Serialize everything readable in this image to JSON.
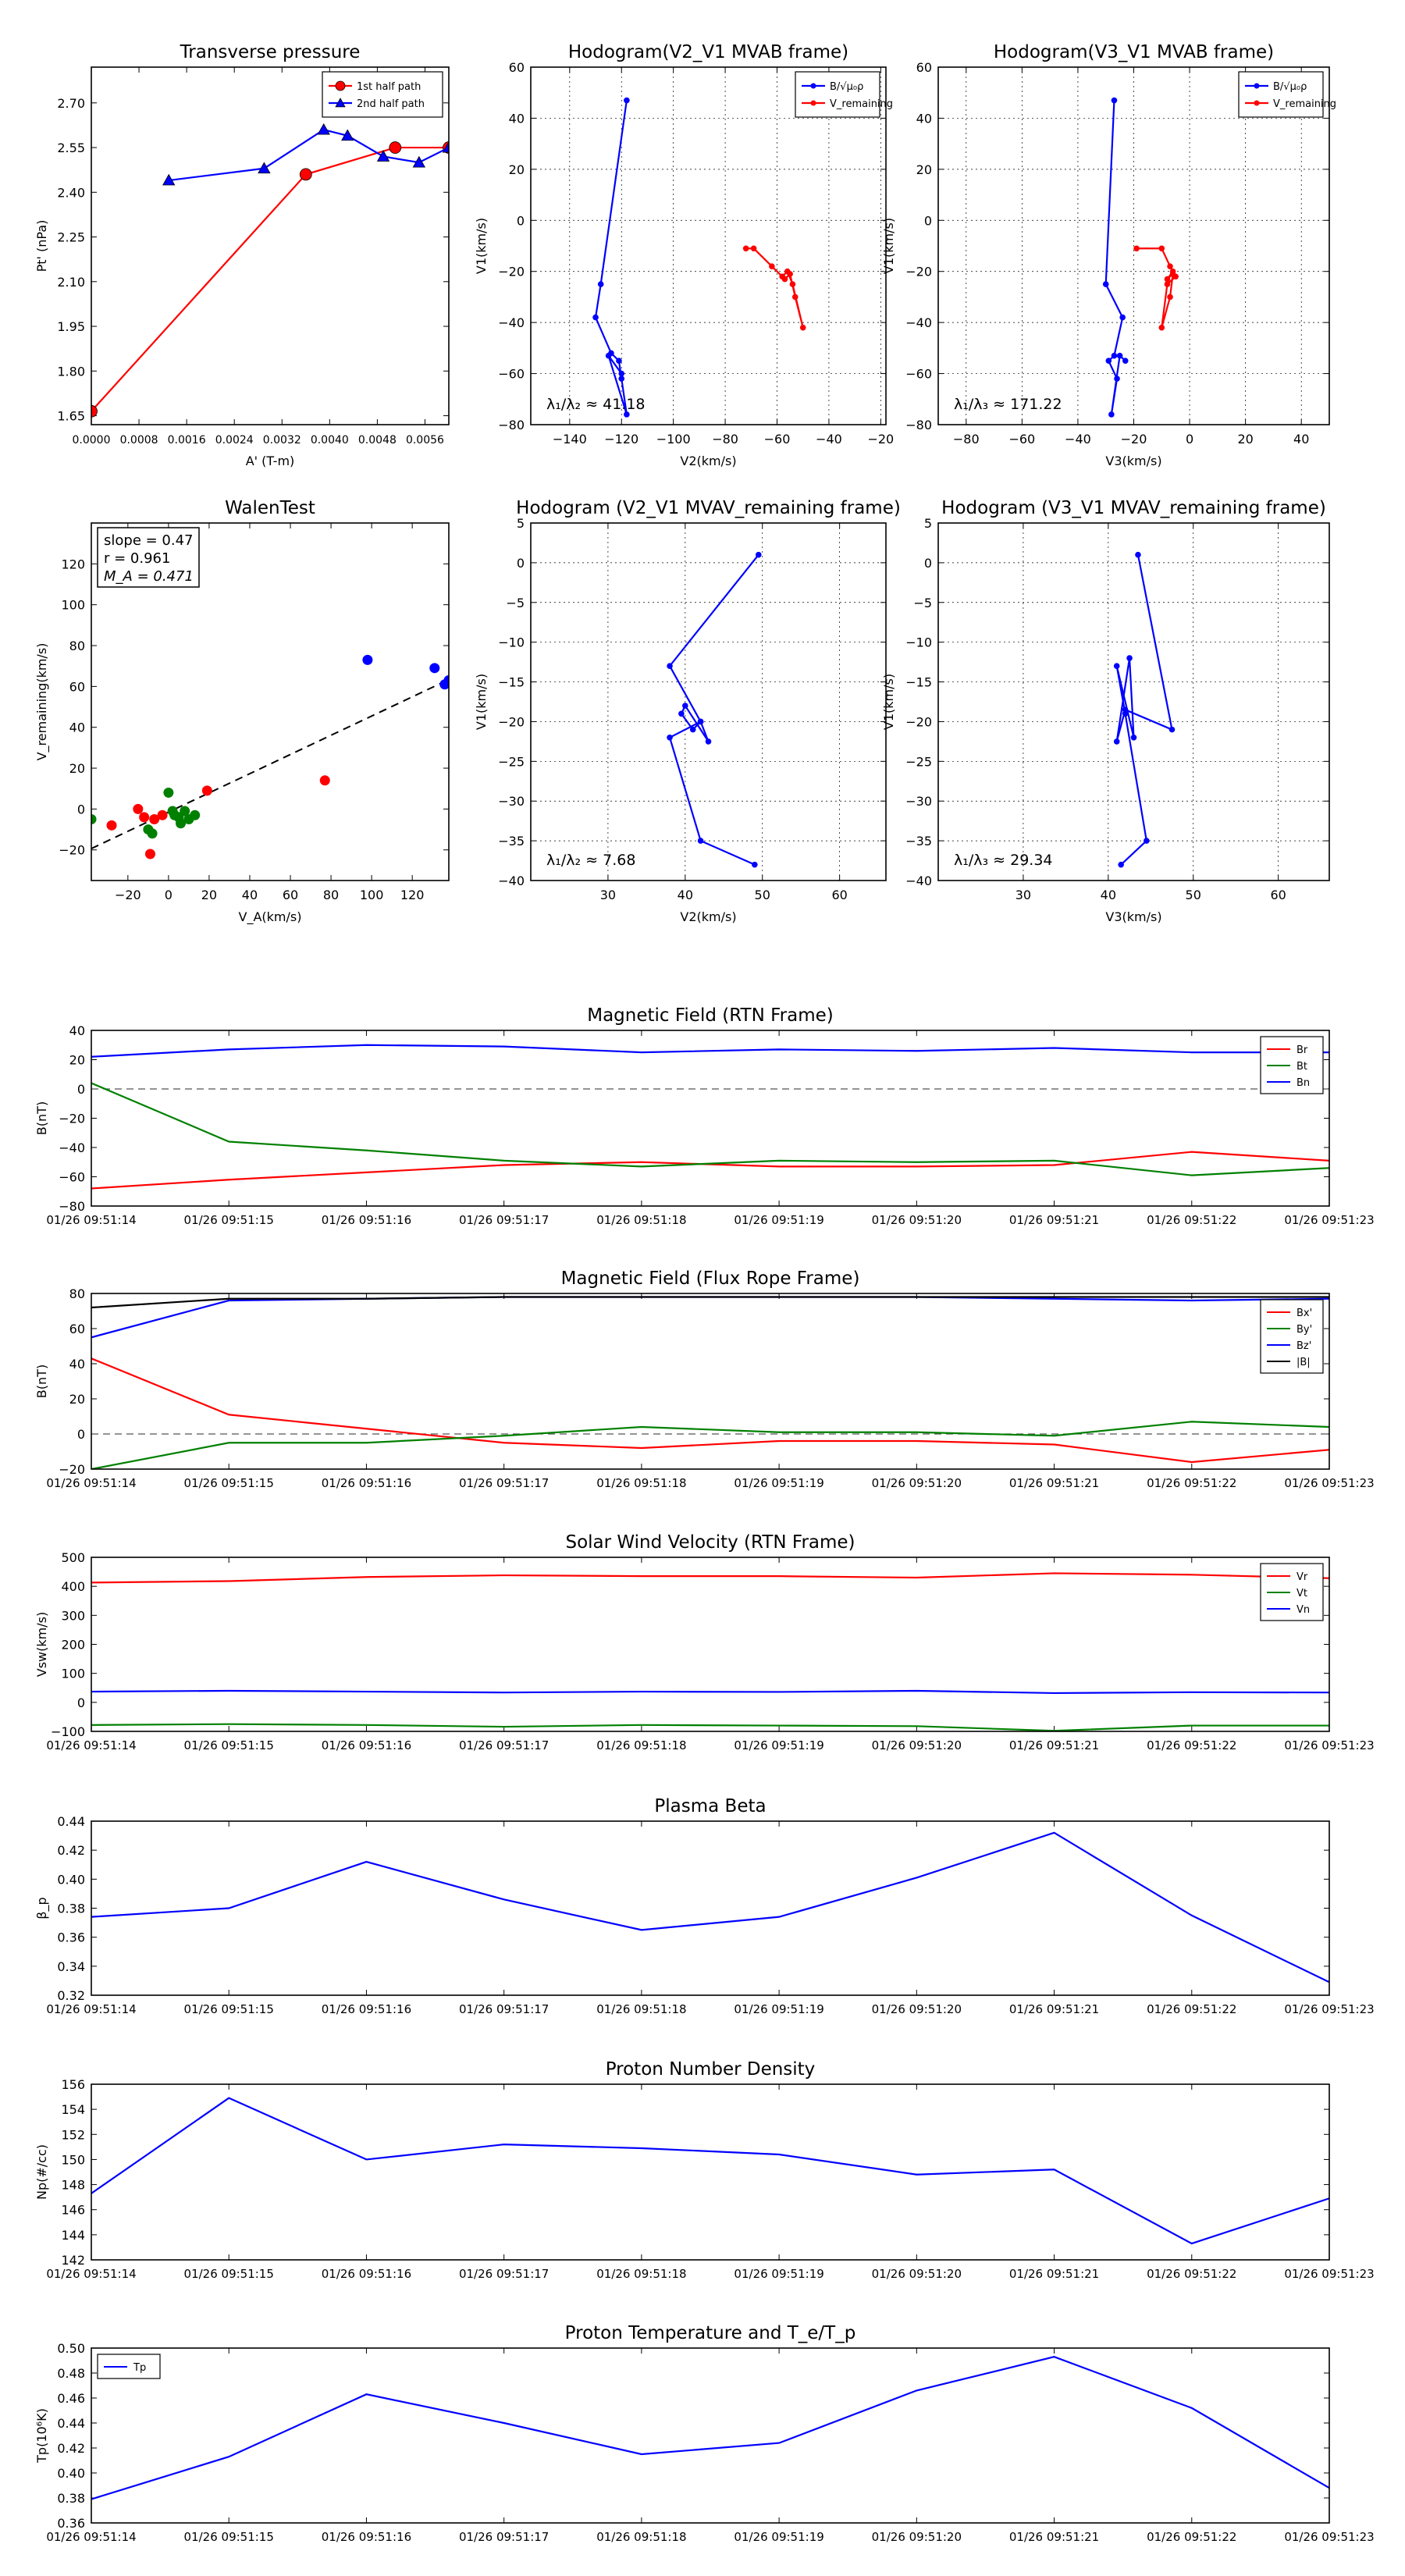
{
  "chart_data": [
    {
      "id": "transverse",
      "type": "line",
      "title": "Transverse pressure",
      "xlabel": "A' (T-m)",
      "ylabel": "Pt' (nPa)",
      "xlim": [
        0.0,
        0.006
      ],
      "ylim": [
        1.62,
        2.82
      ],
      "xticks": [
        "0.0000",
        "0.0008",
        "0.0016",
        "0.0024",
        "0.0032",
        "0.0040",
        "0.0048",
        "0.0056"
      ],
      "xtick_values": [
        0.0,
        0.0008,
        0.0016,
        0.0024,
        0.0032,
        0.004,
        0.0048,
        0.0056
      ],
      "yticks": [
        "1.65",
        "1.80",
        "1.95",
        "2.10",
        "2.25",
        "2.40",
        "2.55",
        "2.70"
      ],
      "ytick_values": [
        1.65,
        1.8,
        1.95,
        2.1,
        2.25,
        2.4,
        2.55,
        2.7
      ],
      "legend": "top-right",
      "series": [
        {
          "name": "1st half path",
          "color": "#ff0000",
          "marker": "circle",
          "x": [
            0.0,
            0.0036,
            0.0051,
            0.006
          ],
          "y": [
            1.665,
            2.46,
            2.55,
            2.55
          ]
        },
        {
          "name": "2nd half path",
          "color": "#0000ff",
          "marker": "triangle",
          "x": [
            0.0013,
            0.0029,
            0.0039,
            0.0043,
            0.0049,
            0.0055,
            0.006
          ],
          "y": [
            2.44,
            2.48,
            2.61,
            2.59,
            2.52,
            2.5,
            2.55
          ]
        }
      ]
    },
    {
      "id": "hodo1",
      "type": "line",
      "title": "Hodogram(V2_V1 MVAB frame)",
      "xlabel": "V2(km/s)",
      "ylabel": "V1(km/s)",
      "xlim": [
        -155,
        -18
      ],
      "ylim": [
        -80,
        60
      ],
      "xticks": [
        "−140",
        "−120",
        "−100",
        "−80",
        "−60",
        "−40",
        "−20"
      ],
      "xtick_values": [
        -140,
        -120,
        -100,
        -80,
        -60,
        -40,
        -20
      ],
      "yticks": [
        "−80",
        "−60",
        "−40",
        "−20",
        "0",
        "20",
        "40",
        "60"
      ],
      "ytick_values": [
        -80,
        -60,
        -40,
        -20,
        0,
        20,
        40,
        60
      ],
      "grid": true,
      "legend": "top-right",
      "annotation": "λ₁/λ₂ ≈ 41.18",
      "series": [
        {
          "name": "B/√μ₀ρ",
          "color": "#0000ff",
          "x": [
            -118,
            -128,
            -130,
            -124,
            -121,
            -120,
            -118,
            -125,
            -120
          ],
          "y": [
            47,
            -25,
            -38,
            -52,
            -55,
            -62,
            -76,
            -53,
            -60
          ]
        },
        {
          "name": "V_remaining",
          "color": "#ff0000",
          "x": [
            -72,
            -69,
            -62,
            -58,
            -56,
            -54,
            -50,
            -53,
            -55,
            -57
          ],
          "y": [
            -11,
            -11,
            -18,
            -22,
            -20,
            -25,
            -42,
            -30,
            -21,
            -23
          ]
        }
      ]
    },
    {
      "id": "hodo2",
      "type": "line",
      "title": "Hodogram(V3_V1 MVAB frame)",
      "xlabel": "V3(km/s)",
      "ylabel": "V1(km/s)",
      "xlim": [
        -90,
        50
      ],
      "ylim": [
        -80,
        60
      ],
      "xticks": [
        "−80",
        "−60",
        "−40",
        "−20",
        "0",
        "20",
        "40"
      ],
      "xtick_values": [
        -80,
        -60,
        -40,
        -20,
        0,
        20,
        40
      ],
      "yticks": [
        "−80",
        "−60",
        "−40",
        "−20",
        "0",
        "20",
        "40",
        "60"
      ],
      "ytick_values": [
        -80,
        -60,
        -40,
        -20,
        0,
        20,
        40,
        60
      ],
      "grid": true,
      "legend": "top-right",
      "annotation": "λ₁/λ₃ ≈ 171.22",
      "series": [
        {
          "name": "B/√μ₀ρ",
          "color": "#0000ff",
          "x": [
            -27,
            -30,
            -24,
            -27,
            -29,
            -26,
            -28,
            -25,
            -23
          ],
          "y": [
            47,
            -25,
            -38,
            -53,
            -55,
            -62,
            -76,
            -53,
            -55
          ]
        },
        {
          "name": "V_remaining",
          "color": "#ff0000",
          "x": [
            -19,
            -10,
            -7,
            -5,
            -8,
            -10,
            -7,
            -6,
            -8,
            -6
          ],
          "y": [
            -11,
            -11,
            -18,
            -22,
            -25,
            -42,
            -30,
            -21,
            -23,
            -20
          ]
        }
      ]
    },
    {
      "id": "walen",
      "type": "scatter",
      "title": "WalenTest",
      "xlabel": "V_A(km/s)",
      "ylabel": "V_remaining(km/s)",
      "xlim": [
        -38,
        138
      ],
      "ylim": [
        -35,
        140
      ],
      "xticks": [
        "−20",
        "0",
        "20",
        "40",
        "60",
        "80",
        "100",
        "120"
      ],
      "xtick_values": [
        -20,
        0,
        20,
        40,
        60,
        80,
        100,
        120
      ],
      "yticks": [
        "−20",
        "0",
        "20",
        "40",
        "60",
        "80",
        "100",
        "120"
      ],
      "ytick_values": [
        -20,
        0,
        20,
        40,
        60,
        80,
        100,
        120
      ],
      "stats": [
        "slope = 0.47",
        "r = 0.961",
        "M_A = 0.471"
      ],
      "fit": {
        "slope": 0.47,
        "intercept": -1.5
      },
      "points": [
        {
          "x": -38,
          "y": -5,
          "color": "#008000"
        },
        {
          "x": -28,
          "y": -8,
          "color": "#ff0000"
        },
        {
          "x": -15,
          "y": 0,
          "color": "#ff0000"
        },
        {
          "x": -12,
          "y": -4,
          "color": "#ff0000"
        },
        {
          "x": -10,
          "y": -10,
          "color": "#008000"
        },
        {
          "x": -8,
          "y": -12,
          "color": "#008000"
        },
        {
          "x": -7,
          "y": -5,
          "color": "#ff0000"
        },
        {
          "x": -9,
          "y": -22,
          "color": "#ff0000"
        },
        {
          "x": -3,
          "y": -3,
          "color": "#ff0000"
        },
        {
          "x": 0,
          "y": 8,
          "color": "#008000"
        },
        {
          "x": 2,
          "y": -1,
          "color": "#008000"
        },
        {
          "x": 3,
          "y": -3,
          "color": "#008000"
        },
        {
          "x": 5,
          "y": -4,
          "color": "#008000"
        },
        {
          "x": 6,
          "y": -7,
          "color": "#008000"
        },
        {
          "x": 8,
          "y": -1,
          "color": "#008000"
        },
        {
          "x": 10,
          "y": -5,
          "color": "#008000"
        },
        {
          "x": 13,
          "y": -3,
          "color": "#008000"
        },
        {
          "x": 19,
          "y": 9,
          "color": "#ff0000"
        },
        {
          "x": 77,
          "y": 14,
          "color": "#ff0000"
        },
        {
          "x": 98,
          "y": 73,
          "color": "#0000ff"
        },
        {
          "x": 131,
          "y": 69,
          "color": "#0000ff"
        },
        {
          "x": 136,
          "y": 61,
          "color": "#0000ff"
        },
        {
          "x": 138,
          "y": 63,
          "color": "#0000ff"
        }
      ]
    },
    {
      "id": "hodo3",
      "type": "line",
      "title": "Hodogram (V2_V1 MVAV_remaining frame)",
      "xlabel": "V2(km/s)",
      "ylabel": "V1(km/s)",
      "xlim": [
        20,
        66
      ],
      "ylim": [
        -40,
        5
      ],
      "xticks": [
        "30",
        "40",
        "50",
        "60"
      ],
      "xtick_values": [
        30,
        40,
        50,
        60
      ],
      "yticks": [
        "−40",
        "−35",
        "−30",
        "−25",
        "−20",
        "−15",
        "−10",
        "−5",
        "0",
        "5"
      ],
      "ytick_values": [
        -40,
        -35,
        -30,
        -25,
        -20,
        -15,
        -10,
        -5,
        0,
        5
      ],
      "grid": true,
      "annotation": "λ₁/λ₂ ≈ 7.68",
      "series": [
        {
          "name": "",
          "color": "#0000ff",
          "x": [
            49.5,
            38,
            42,
            43,
            40,
            39.5,
            41,
            42,
            38,
            42,
            49
          ],
          "y": [
            1,
            -13,
            -20,
            -22.5,
            -18,
            -19,
            -21,
            -20,
            -22,
            -35,
            -38
          ]
        }
      ]
    },
    {
      "id": "hodo4",
      "type": "line",
      "title": "Hodogram (V3_V1 MVAV_remaining frame)",
      "xlabel": "V3(km/s)",
      "ylabel": "V1(km/s)",
      "xlim": [
        20,
        66
      ],
      "ylim": [
        -40,
        5
      ],
      "xticks": [
        "30",
        "40",
        "50",
        "60"
      ],
      "xtick_values": [
        30,
        40,
        50,
        60
      ],
      "yticks": [
        "−40",
        "−35",
        "−30",
        "−25",
        "−20",
        "−15",
        "−10",
        "−5",
        "0",
        "5"
      ],
      "ytick_values": [
        -40,
        -35,
        -30,
        -25,
        -20,
        -15,
        -10,
        -5,
        0,
        5
      ],
      "grid": true,
      "annotation": "λ₁/λ₃ ≈ 29.34",
      "series": [
        {
          "name": "",
          "color": "#0000ff",
          "x": [
            43.5,
            47.5,
            42,
            41,
            42.5,
            43,
            41,
            42,
            44.5,
            41.5
          ],
          "y": [
            1,
            -21,
            -18.5,
            -22.5,
            -12,
            -22,
            -13,
            -19,
            -35,
            -38
          ]
        }
      ]
    },
    {
      "id": "ts_b_rtn",
      "type": "line",
      "title": "Magnetic Field (RTN Frame)",
      "ylabel": "B(nT)",
      "ylim": [
        -80,
        40
      ],
      "yticks": [
        "−80",
        "−60",
        "−40",
        "−20",
        "0",
        "20",
        "40"
      ],
      "ytick_values": [
        -80,
        -60,
        -40,
        -20,
        0,
        20,
        40
      ],
      "zero_line": true,
      "legend": "top-right",
      "series": [
        {
          "name": "Br",
          "color": "#ff0000",
          "values": [
            -68,
            -62,
            -57,
            -52,
            -50,
            -53,
            -53,
            -52,
            -43,
            -49
          ]
        },
        {
          "name": "Bt",
          "color": "#008000",
          "values": [
            4,
            -36,
            -42,
            -49,
            -53,
            -49,
            -50,
            -49,
            -59,
            -54
          ]
        },
        {
          "name": "Bn",
          "color": "#0000ff",
          "values": [
            22,
            27,
            30,
            29,
            25,
            27,
            26,
            28,
            25,
            25
          ]
        }
      ]
    },
    {
      "id": "ts_b_fr",
      "type": "line",
      "title": "Magnetic Field (Flux Rope Frame)",
      "ylabel": "B(nT)",
      "ylim": [
        -20,
        80
      ],
      "yticks": [
        "−20",
        "0",
        "20",
        "40",
        "60",
        "80"
      ],
      "ytick_values": [
        -20,
        0,
        20,
        40,
        60,
        80
      ],
      "zero_line": true,
      "legend": "top-right",
      "series": [
        {
          "name": "Bx'",
          "color": "#ff0000",
          "values": [
            43,
            11,
            3,
            -5,
            -8,
            -4,
            -4,
            -6,
            -16,
            -9
          ]
        },
        {
          "name": "By'",
          "color": "#008000",
          "values": [
            -20,
            -5,
            -5,
            -1,
            4,
            1,
            1,
            -1,
            7,
            4
          ]
        },
        {
          "name": "Bz'",
          "color": "#0000ff",
          "values": [
            55,
            76,
            77,
            78,
            78,
            78,
            78,
            77,
            76,
            77
          ]
        },
        {
          "name": "|B|",
          "color": "#000000",
          "values": [
            72,
            77,
            77,
            78,
            78,
            78,
            78,
            78,
            78,
            78
          ]
        }
      ]
    },
    {
      "id": "ts_v",
      "type": "line",
      "title": "Solar Wind Velocity (RTN Frame)",
      "ylabel": "Vsw(km/s)",
      "ylim": [
        -100,
        500
      ],
      "yticks": [
        "−100",
        "0",
        "100",
        "200",
        "300",
        "400",
        "500"
      ],
      "ytick_values": [
        -100,
        0,
        100,
        200,
        300,
        400,
        500
      ],
      "legend": "top-right",
      "series": [
        {
          "name": "Vr",
          "color": "#ff0000",
          "values": [
            413,
            418,
            432,
            438,
            435,
            435,
            430,
            445,
            440,
            428
          ]
        },
        {
          "name": "Vt",
          "color": "#008000",
          "values": [
            -78,
            -75,
            -78,
            -84,
            -78,
            -80,
            -82,
            -98,
            -80,
            -80
          ]
        },
        {
          "name": "Vn",
          "color": "#0000ff",
          "values": [
            37,
            40,
            37,
            34,
            37,
            36,
            40,
            32,
            35,
            34
          ]
        }
      ]
    },
    {
      "id": "ts_beta",
      "type": "line",
      "title": "Plasma Beta",
      "ylabel": "β_p",
      "ylim": [
        0.32,
        0.44
      ],
      "yticks": [
        "0.32",
        "0.34",
        "0.36",
        "0.38",
        "0.40",
        "0.42",
        "0.44"
      ],
      "ytick_values": [
        0.32,
        0.34,
        0.36,
        0.38,
        0.4,
        0.42,
        0.44
      ],
      "series": [
        {
          "name": "",
          "color": "#0000ff",
          "values": [
            0.374,
            0.38,
            0.412,
            0.386,
            0.365,
            0.374,
            0.401,
            0.432,
            0.375,
            0.329
          ]
        }
      ]
    },
    {
      "id": "ts_np",
      "type": "line",
      "title": "Proton Number Density",
      "ylabel": "Np(#/cc)",
      "ylim": [
        142,
        156
      ],
      "yticks": [
        "142",
        "144",
        "146",
        "148",
        "150",
        "152",
        "154",
        "156"
      ],
      "ytick_values": [
        142,
        144,
        146,
        148,
        150,
        152,
        154,
        156
      ],
      "series": [
        {
          "name": "",
          "color": "#0000ff",
          "values": [
            147.3,
            154.9,
            150.0,
            151.2,
            150.9,
            150.4,
            148.8,
            149.2,
            143.3,
            146.9
          ]
        }
      ]
    },
    {
      "id": "ts_tp",
      "type": "line",
      "title": "Proton Temperature and T_e/T_p",
      "ylabel": "Tp(10⁶K)",
      "ylim": [
        0.36,
        0.5
      ],
      "yticks": [
        "0.36",
        "0.38",
        "0.40",
        "0.42",
        "0.44",
        "0.46",
        "0.48",
        "0.50"
      ],
      "ytick_values": [
        0.36,
        0.38,
        0.4,
        0.42,
        0.44,
        0.46,
        0.48,
        0.5
      ],
      "legend": "top-left",
      "series": [
        {
          "name": "Tp",
          "color": "#0000ff",
          "values": [
            0.379,
            0.413,
            0.463,
            0.44,
            0.415,
            0.424,
            0.466,
            0.493,
            0.452,
            0.388
          ]
        }
      ]
    }
  ],
  "time_axis": {
    "labels": [
      "01/26 09:51:14",
      "01/26 09:51:15",
      "01/26 09:51:16",
      "01/26 09:51:17",
      "01/26 09:51:18",
      "01/26 09:51:19",
      "01/26 09:51:20",
      "01/26 09:51:21",
      "01/26 09:51:22",
      "01/26 09:51:23"
    ]
  }
}
